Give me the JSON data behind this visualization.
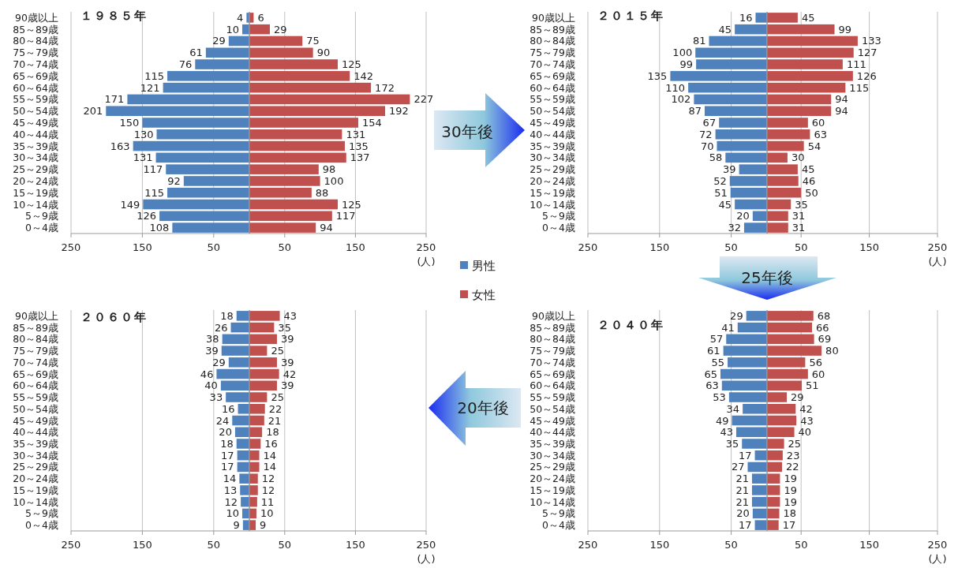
{
  "chart_data": [
    {
      "type": "bar",
      "orientation": "horizontal",
      "title": "１９８５年",
      "legend": "bottom right",
      "grid": "x",
      "data_labels": true,
      "categories": [
        "90歳以上",
        "85～89歳",
        "80～84歳",
        "75～79歳",
        "70～74歳",
        "65～69歳",
        "60～64歳",
        "55～59歳",
        "50～54歳",
        "45～49歳",
        "40～44歳",
        "35～39歳",
        "30～34歳",
        "25～29歳",
        "20～24歳",
        "15～19歳",
        "10～14歳",
        "5～9歳",
        "0～4歳"
      ],
      "xlim": [
        250,
        0
      ],
      "xticks": [
        250,
        150,
        50
      ],
      "series": [
        {
          "name": "男性",
          "color": "#4f81bd",
          "values": [
            4,
            10,
            29,
            61,
            76,
            115,
            121,
            171,
            201,
            150,
            130,
            163,
            131,
            117,
            92,
            115,
            149,
            126,
            108
          ]
        }
      ]
    },
    {
      "type": "bar",
      "orientation": "horizontal",
      "xlabel": "(人)",
      "legend": "bottom right",
      "grid": "x",
      "data_labels": true,
      "annotations": [
        "30年後"
      ],
      "categories": [
        null,
        null,
        null,
        null,
        null,
        null,
        null,
        null,
        null,
        null,
        null,
        null,
        null,
        null,
        null,
        null,
        null,
        null,
        null
      ],
      "xlim": [
        0,
        250
      ],
      "xticks": [
        50,
        150,
        250
      ],
      "series": [
        {
          "name": "女性",
          "color": "#c0504d",
          "values": [
            6,
            29,
            75,
            90,
            125,
            142,
            172,
            227,
            192,
            154,
            131,
            135,
            137,
            98,
            100,
            88,
            125,
            117,
            94
          ]
        }
      ]
    },
    {
      "type": "bar",
      "orientation": "horizontal",
      "title": "２０１５年",
      "grid": "x",
      "data_labels": true,
      "categories": [
        "90歳以上",
        "85～89歳",
        "80～84歳",
        "75～79歳",
        "70～74歳",
        "65～69歳",
        "60～64歳",
        "55～59歳",
        "50～54歳",
        "45～49歳",
        "40～44歳",
        "35～39歳",
        "30～34歳",
        "25～29歳",
        "20～24歳",
        "15～19歳",
        "10～14歳",
        "5～9歳",
        "0～4歳"
      ],
      "xlim": [
        250,
        0
      ],
      "xticks": [
        250,
        150,
        50
      ],
      "series": [
        {
          "color": "#4f81bd",
          "values": [
            16,
            45,
            81,
            100,
            99,
            135,
            110,
            102,
            87,
            67,
            72,
            70,
            58,
            39,
            52,
            51,
            45,
            20,
            32
          ]
        }
      ]
    },
    {
      "type": "bar",
      "orientation": "horizontal",
      "xlabel": "(人)",
      "grid": "x",
      "data_labels": true,
      "annotations": [
        "25年後"
      ],
      "categories": [
        null,
        null,
        null,
        null,
        null,
        null,
        null,
        null,
        null,
        null,
        null,
        null,
        null,
        null,
        null,
        null,
        null,
        null,
        null
      ],
      "xlim": [
        0,
        250
      ],
      "xticks": [
        50,
        150,
        250
      ],
      "series": [
        {
          "color": "#c0504d",
          "values": [
            45,
            99,
            133,
            127,
            111,
            126,
            115,
            94,
            94,
            60,
            63,
            54,
            30,
            45,
            46,
            50,
            35,
            31,
            31
          ]
        }
      ]
    },
    {
      "type": "bar",
      "orientation": "horizontal",
      "title": "２０６０年",
      "grid": "x",
      "data_labels": true,
      "categories": [
        "90歳以上",
        "85～89歳",
        "80～84歳",
        "75～79歳",
        "70～74歳",
        "65～69歳",
        "60～64歳",
        "55～59歳",
        "50～54歳",
        "45～49歳",
        "40～44歳",
        "35～39歳",
        "30～34歳",
        "25～29歳",
        "20～24歳",
        "15～19歳",
        "10～14歳",
        "5～9歳",
        "0～4歳"
      ],
      "xlim": [
        250,
        0
      ],
      "xticks": [
        250,
        150,
        50
      ],
      "series": [
        {
          "color": "#4f81bd",
          "values": [
            18,
            26,
            38,
            39,
            29,
            46,
            40,
            33,
            16,
            24,
            20,
            18,
            17,
            17,
            14,
            13,
            12,
            10,
            9
          ]
        }
      ]
    },
    {
      "type": "bar",
      "orientation": "horizontal",
      "xlabel": "(人)",
      "grid": "x",
      "data_labels": true,
      "categories": [
        null,
        null,
        null,
        null,
        null,
        null,
        null,
        null,
        null,
        null,
        null,
        null,
        null,
        null,
        null,
        null,
        null,
        null,
        null
      ],
      "xlim": [
        0,
        250
      ],
      "xticks": [
        50,
        150,
        250
      ],
      "series": [
        {
          "color": "#c0504d",
          "values": [
            43,
            35,
            39,
            25,
            39,
            42,
            39,
            25,
            22,
            21,
            18,
            16,
            14,
            14,
            12,
            12,
            11,
            10,
            9
          ]
        }
      ]
    },
    {
      "type": "bar",
      "orientation": "horizontal",
      "title": "２０４０年",
      "grid": "x",
      "data_labels": true,
      "categories": [
        "90歳以上",
        "85～89歳",
        "80～84歳",
        "75～79歳",
        "70～74歳",
        "65～69歳",
        "60～64歳",
        "55～59歳",
        "50～54歳",
        "45～49歳",
        "40～44歳",
        "35～39歳",
        "30～34歳",
        "25～29歳",
        "20～24歳",
        "15～19歳",
        "10～14歳",
        "5～9歳",
        "0～4歳"
      ],
      "xlim": [
        250,
        0
      ],
      "xticks": [
        250,
        150,
        50
      ],
      "series": [
        {
          "color": "#4f81bd",
          "values": [
            29,
            41,
            57,
            61,
            55,
            65,
            63,
            53,
            34,
            49,
            43,
            35,
            17,
            27,
            21,
            21,
            21,
            20,
            17
          ]
        }
      ]
    },
    {
      "type": "bar",
      "orientation": "horizontal",
      "xlabel": "(人)",
      "grid": "x",
      "data_labels": true,
      "annotations": [
        "20年後"
      ],
      "categories": [
        null,
        null,
        null,
        null,
        null,
        null,
        null,
        null,
        null,
        null,
        null,
        null,
        null,
        null,
        null,
        null,
        null,
        null,
        null
      ],
      "xlim": [
        0,
        250
      ],
      "xticks": [
        50,
        150,
        250
      ],
      "series": [
        {
          "color": "#c0504d",
          "values": [
            68,
            66,
            69,
            80,
            56,
            60,
            51,
            29,
            42,
            43,
            40,
            25,
            23,
            22,
            19,
            19,
            19,
            18,
            17
          ]
        }
      ]
    }
  ]
}
